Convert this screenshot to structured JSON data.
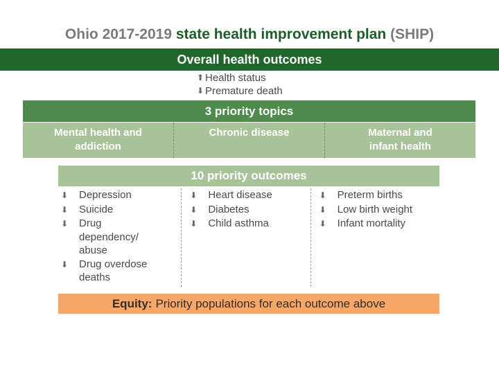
{
  "title": {
    "part1": "Ohio 2017-2019",
    "part2": "state health improvement plan",
    "part3": "(SHIP)"
  },
  "overall": {
    "heading": "Overall health outcomes",
    "items": [
      {
        "direction": "up",
        "arrow": "⬆",
        "label": "Health status"
      },
      {
        "direction": "down",
        "arrow": "⬇",
        "label": "Premature death"
      }
    ]
  },
  "topics": {
    "heading": "3 priority topics",
    "items": [
      "Mental health and addiction",
      "Chronic disease",
      "Maternal and infant health"
    ]
  },
  "outcomes": {
    "heading": "10 priority outcomes",
    "arrow": "⬇",
    "columns": [
      [
        "Depression",
        "Suicide",
        "Drug dependency/ abuse",
        "Drug overdose deaths"
      ],
      [
        "Heart disease",
        "Diabetes",
        "Child asthma"
      ],
      [
        "Preterm births",
        "Low birth weight",
        "Infant mortality"
      ]
    ]
  },
  "equity": {
    "label": "Equity:",
    "text": "Priority populations for each outcome above"
  },
  "colors": {
    "dark_green": "#20662b",
    "medium_green": "#4e8b4c",
    "light_green": "#a8c39a",
    "orange": "#f5a869",
    "title_grey": "#7a7a7a",
    "title_green": "#1c5d2a"
  }
}
